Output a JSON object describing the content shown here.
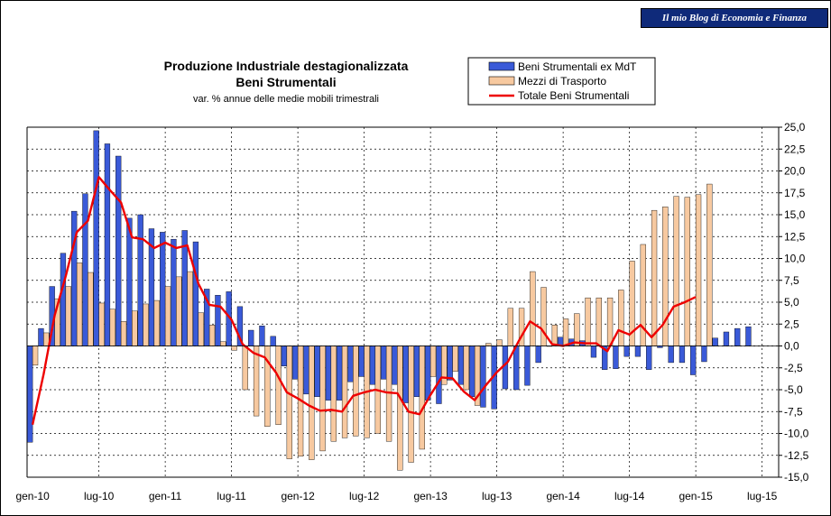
{
  "brand": {
    "label": "Il mio Blog di Economia e Finanza"
  },
  "chart_data": {
    "type": "bar",
    "title": "Produzione Industriale destagionalizzata",
    "title2": "Beni Strumentali",
    "subtitle": "var. % annue delle medie mobili trimestrali",
    "ylim": [
      -15.0,
      25.0
    ],
    "ytick_step": 2.5,
    "y_axis_side": "right",
    "grid": "dashed",
    "legend_position": "top-right",
    "x_tick_labels": [
      {
        "index": 0,
        "label": "gen-10"
      },
      {
        "index": 6,
        "label": "lug-10"
      },
      {
        "index": 12,
        "label": "gen-11"
      },
      {
        "index": 18,
        "label": "lug-11"
      },
      {
        "index": 24,
        "label": "gen-12"
      },
      {
        "index": 30,
        "label": "lug-12"
      },
      {
        "index": 36,
        "label": "gen-13"
      },
      {
        "index": 42,
        "label": "lug-13"
      },
      {
        "index": 48,
        "label": "gen-14"
      },
      {
        "index": 54,
        "label": "lug-14"
      },
      {
        "index": 60,
        "label": "gen-15"
      },
      {
        "index": 66,
        "label": "lug-15"
      }
    ],
    "series": [
      {
        "name": "Beni Strumentali ex MdT",
        "type": "bar",
        "color": "#3a5ad8",
        "values": [
          -11.0,
          2.0,
          6.8,
          10.6,
          15.4,
          17.4,
          24.6,
          23.1,
          21.7,
          14.6,
          15.0,
          13.4,
          13.0,
          12.2,
          13.2,
          11.9,
          6.5,
          5.8,
          6.2,
          4.5,
          1.8,
          2.3,
          1.1,
          -2.3,
          -3.8,
          -5.5,
          -5.8,
          -6.2,
          -6.2,
          -4.1,
          -3.5,
          -4.4,
          -3.8,
          -4.4,
          -6.5,
          -5.8,
          -6.2,
          -6.6,
          -3.9,
          -4.4,
          -5.8,
          -7.0,
          -7.2,
          -4.9,
          -5.0,
          -4.5,
          -1.9,
          0.0,
          1.0,
          0.8,
          0.6,
          -1.3,
          -2.7,
          -2.6,
          -1.2,
          -1.2,
          -2.7,
          -0.2,
          -1.9,
          -1.9,
          -3.3,
          -1.8,
          0.9,
          1.6,
          2.0,
          2.2
        ]
      },
      {
        "name": "Mezzi di Trasporto",
        "type": "bar",
        "color": "#f7c9a0",
        "values": [
          -2.2,
          1.5,
          5.4,
          6.8,
          9.5,
          8.4,
          4.9,
          4.2,
          2.8,
          4.0,
          4.8,
          5.2,
          6.8,
          7.9,
          8.5,
          3.8,
          2.4,
          0.5,
          -0.5,
          -5.0,
          -8.0,
          -9.2,
          -9.0,
          -12.9,
          -12.6,
          -13.0,
          -12.0,
          -10.9,
          -10.5,
          -10.3,
          -10.5,
          -10.0,
          -10.9,
          -14.2,
          -13.3,
          -11.8,
          -3.5,
          -4.4,
          -2.9,
          -5.0,
          -6.8,
          0.3,
          0.7,
          4.3,
          4.3,
          8.5,
          6.7,
          2.4,
          3.1,
          3.7,
          5.5,
          5.5,
          5.5,
          6.4,
          9.7,
          11.6,
          15.5,
          15.9,
          17.1,
          17.0,
          17.3,
          18.5
        ]
      },
      {
        "name": "Totale Beni Strumentali",
        "type": "line",
        "color": "#ee0000",
        "values": [
          -9.0,
          -3.2,
          3.5,
          8.0,
          13.0,
          14.3,
          19.3,
          17.8,
          16.4,
          12.4,
          12.2,
          11.2,
          11.8,
          11.2,
          11.5,
          7.1,
          4.7,
          4.5,
          3.0,
          0.2,
          -0.8,
          -1.3,
          -3.0,
          -5.3,
          -6.0,
          -6.8,
          -7.4,
          -7.3,
          -7.5,
          -5.7,
          -5.3,
          -5.0,
          -5.3,
          -5.4,
          -7.5,
          -7.8,
          -5.6,
          -3.6,
          -3.7,
          -5.2,
          -6.2,
          -4.5,
          -3.0,
          -1.8,
          0.6,
          2.8,
          2.0,
          0.2,
          0.0,
          0.4,
          0.3,
          0.3,
          -0.6,
          1.8,
          1.3,
          2.4,
          1.0,
          2.4,
          4.5,
          5.0,
          5.6
        ]
      }
    ]
  }
}
